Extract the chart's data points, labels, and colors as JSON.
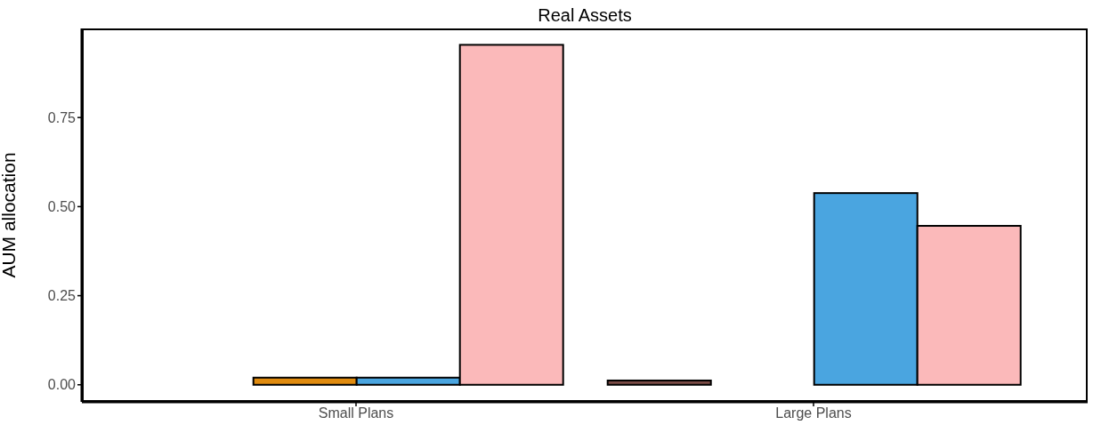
{
  "chart_data": {
    "type": "bar",
    "title": "Real Assets",
    "ylabel": "AUM allocation",
    "categories": [
      "Small Plans",
      "Large Plans"
    ],
    "series": [
      {
        "color": "#7a4b45",
        "values": [
          0,
          0.012
        ]
      },
      {
        "color": "#e08b0f",
        "values": [
          0.02,
          0
        ]
      },
      {
        "color": "#4aa5e0",
        "values": [
          0.02,
          0.538
        ]
      },
      {
        "color": "#fbb9ba",
        "values": [
          0.954,
          0.446
        ]
      }
    ],
    "ylim": [
      -0.048,
      1.0
    ],
    "yticks": [
      {
        "value": 0,
        "label": "0.00"
      },
      {
        "value": 0.25,
        "label": "0.25"
      },
      {
        "value": 0.5,
        "label": "0.50"
      },
      {
        "value": 0.75,
        "label": "0.75"
      }
    ],
    "grid": false,
    "legend": false
  }
}
